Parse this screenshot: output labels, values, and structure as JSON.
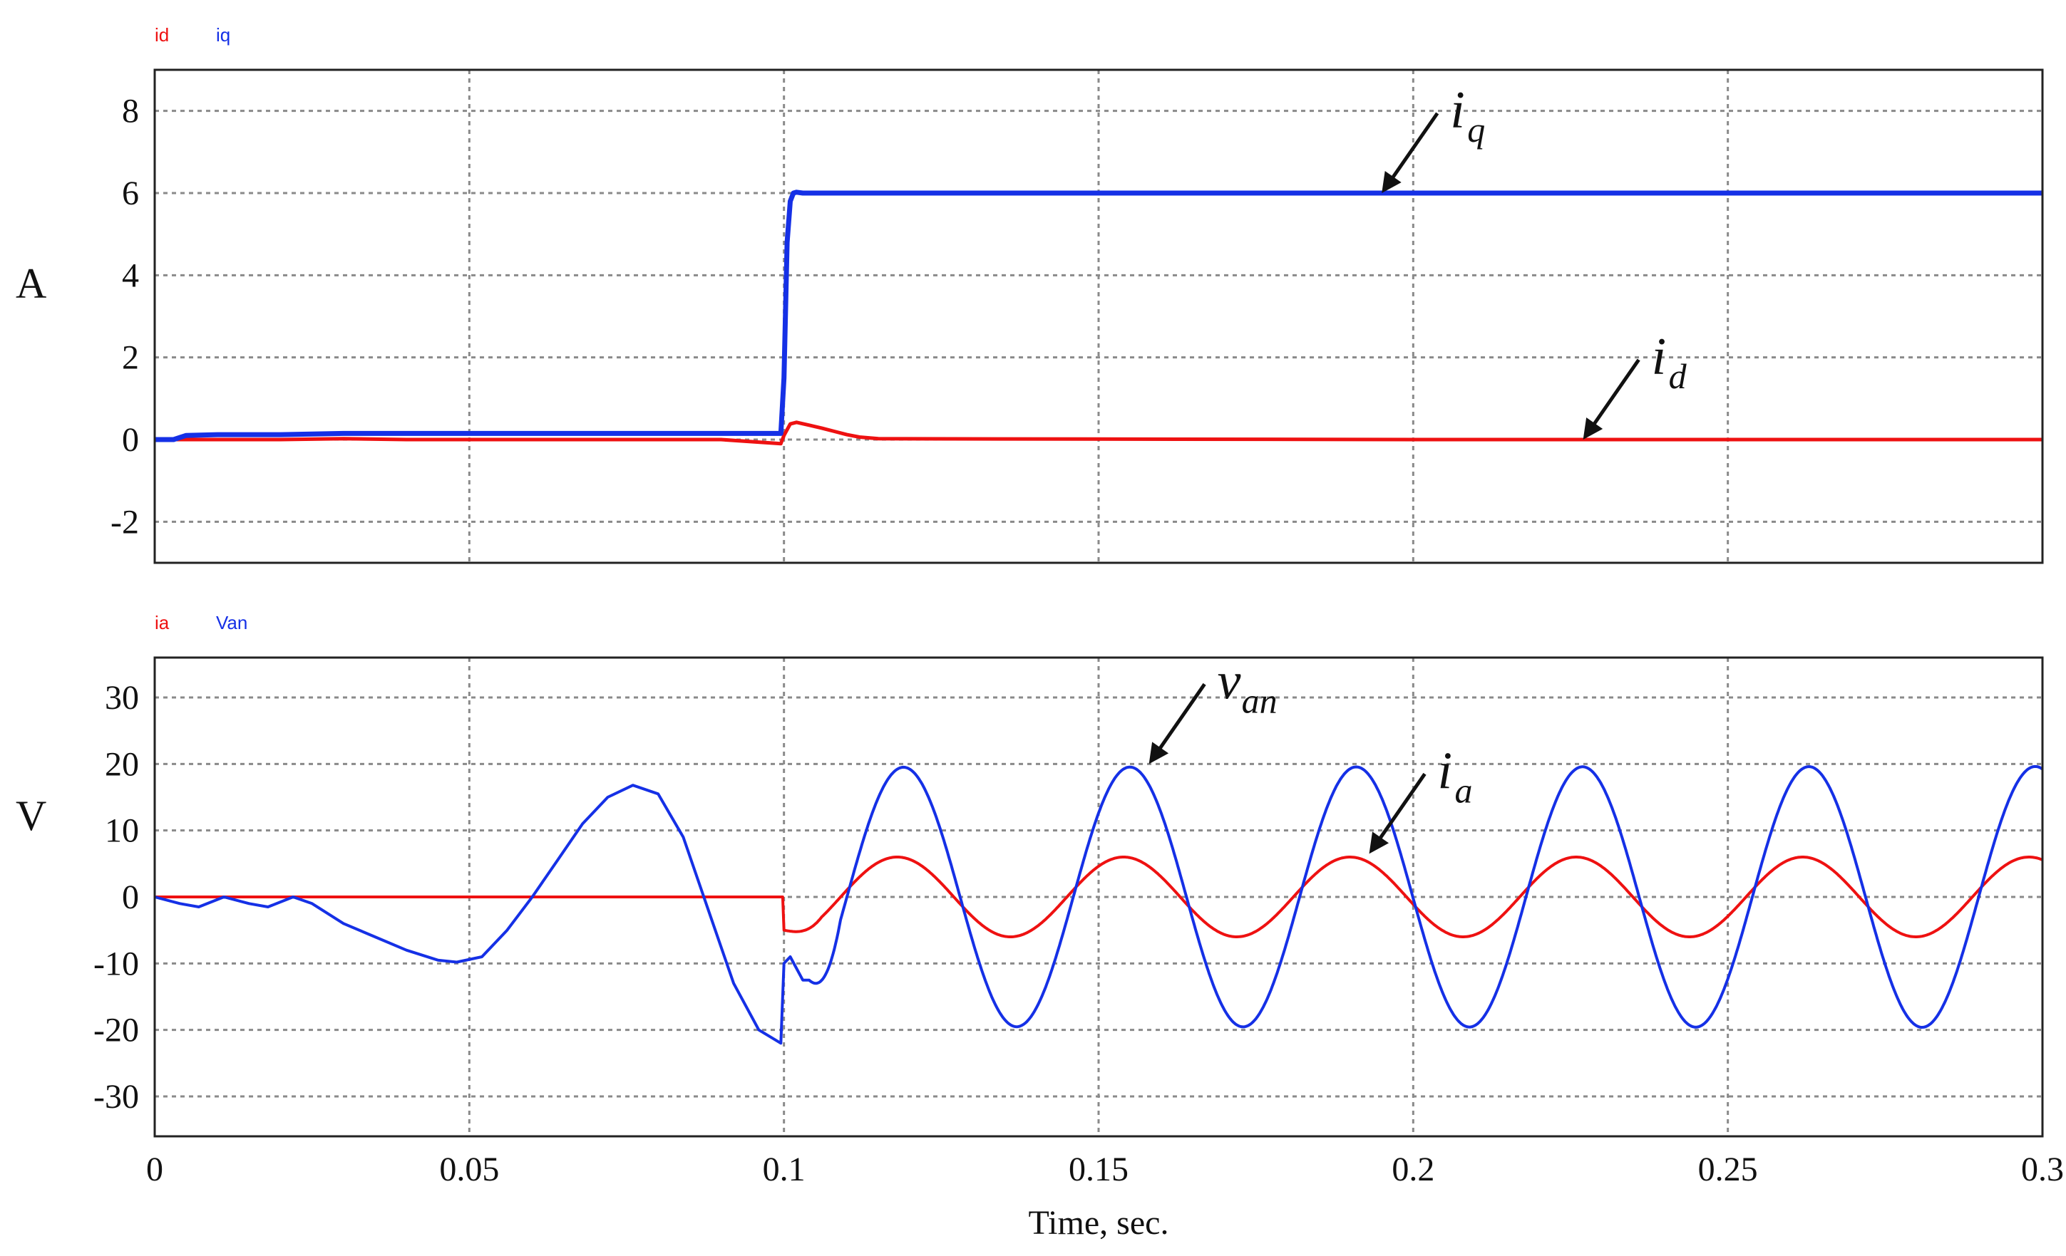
{
  "chart_data": [
    {
      "type": "line",
      "panel": "top",
      "ylabel": "A",
      "legend": [
        "id",
        "iq"
      ],
      "xlim": [
        0,
        0.3
      ],
      "ylim": [
        -3,
        9
      ],
      "yticks": [
        8,
        6,
        4,
        2,
        0,
        -2
      ],
      "ytick_labels": [
        "8",
        "6",
        "4",
        "2",
        "0",
        "-2"
      ],
      "xgrid": [
        0.05,
        0.1,
        0.15,
        0.2,
        0.25
      ],
      "series": [
        {
          "name": "id",
          "color": "#ee1111",
          "x": [
            0,
            0.005,
            0.01,
            0.02,
            0.03,
            0.04,
            0.05,
            0.06,
            0.07,
            0.08,
            0.09,
            0.0995,
            0.1,
            0.101,
            0.102,
            0.104,
            0.106,
            0.108,
            0.11,
            0.112,
            0.115,
            0.2,
            0.3
          ],
          "y": [
            0,
            0,
            0,
            0,
            0.02,
            0,
            0,
            0,
            0,
            0,
            0,
            -0.1,
            0.1,
            0.38,
            0.42,
            0.35,
            0.28,
            0.2,
            0.12,
            0.06,
            0.02,
            0,
            0
          ]
        },
        {
          "name": "iq",
          "color": "#1530e6",
          "x": [
            0,
            0.003,
            0.005,
            0.01,
            0.02,
            0.03,
            0.04,
            0.05,
            0.06,
            0.07,
            0.08,
            0.09,
            0.0995,
            0.1,
            0.1005,
            0.101,
            0.1015,
            0.102,
            0.103,
            0.11,
            0.2,
            0.3
          ],
          "y": [
            0,
            0,
            0.1,
            0.12,
            0.12,
            0.15,
            0.15,
            0.15,
            0.15,
            0.15,
            0.15,
            0.15,
            0.15,
            1.5,
            4.8,
            5.8,
            6.0,
            6.02,
            6.0,
            6.0,
            6.0,
            6.0
          ]
        }
      ],
      "annotations": [
        {
          "main": "i",
          "sub": "q",
          "target_x": 0.195,
          "target_y": 6.0
        },
        {
          "main": "i",
          "sub": "d",
          "target_x": 0.227,
          "target_y": 0.0
        }
      ]
    },
    {
      "type": "line",
      "panel": "bottom",
      "ylabel": "V",
      "legend": [
        "ia",
        "Van"
      ],
      "xlabel": "Time, sec.",
      "xlim": [
        0,
        0.3
      ],
      "ylim": [
        -36,
        36
      ],
      "yticks": [
        30,
        20,
        10,
        0,
        -10,
        -20,
        -30
      ],
      "ytick_labels": [
        "30",
        "20",
        "10",
        "0",
        "-10",
        "-20",
        "-30"
      ],
      "xticks": [
        0,
        0.05,
        0.1,
        0.15,
        0.2,
        0.25,
        0.3
      ],
      "xtick_labels": [
        "0",
        "0.05",
        "0.1",
        "0.15",
        "0.2",
        "0.25",
        "0.3"
      ],
      "xgrid": [
        0.05,
        0.1,
        0.15,
        0.2,
        0.25
      ],
      "series": [
        {
          "name": "ia",
          "color": "#ee1111",
          "model": "ia",
          "amplitude": 6,
          "frequency_hz": 27.8,
          "peak_time": 0.118,
          "start_time": 0.1,
          "initial_dip": -5
        },
        {
          "name": "Van",
          "color": "#1530e6",
          "model": "van",
          "samples_before_step": {
            "x": [
              0,
              0.004,
              0.007,
              0.011,
              0.015,
              0.018,
              0.022,
              0.025,
              0.03,
              0.035,
              0.04,
              0.045,
              0.048,
              0.052,
              0.056,
              0.06,
              0.064,
              0.068,
              0.072,
              0.076,
              0.08,
              0.084,
              0.088,
              0.092,
              0.096,
              0.0995
            ],
            "y": [
              0,
              -1,
              -1.5,
              0,
              -1,
              -1.5,
              0,
              -1,
              -4,
              -6,
              -8,
              -9.5,
              -9.8,
              -9,
              -5,
              0,
              5.5,
              11,
              15,
              16.8,
              15.5,
              9,
              -2,
              -13,
              -20,
              -22
            ]
          },
          "restart_value": -10,
          "restart_dip": -12.5,
          "amplitude": 19.5,
          "frequency_hz": 27.8,
          "peak_time": 0.119,
          "amp_growth": 0.006
        }
      ],
      "annotations": [
        {
          "main": "v",
          "sub": "an",
          "target_x": 0.158,
          "target_y": 20
        },
        {
          "main": "i",
          "sub": "a",
          "target_x": 0.193,
          "target_y": 6.5
        }
      ]
    }
  ]
}
